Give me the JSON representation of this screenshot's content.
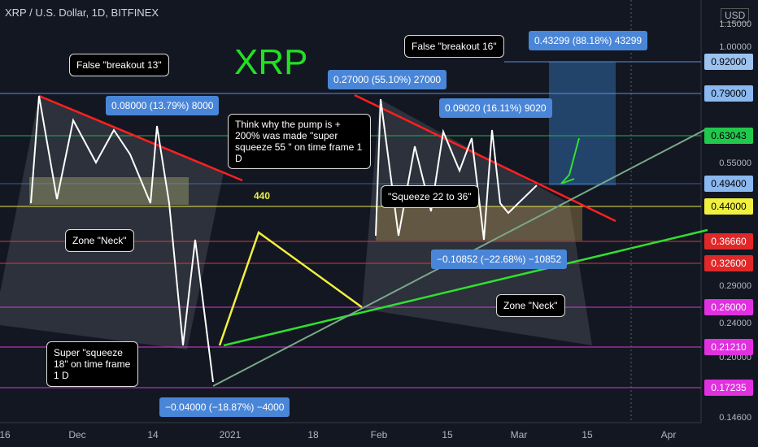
{
  "header": {
    "title": "XRP / U.S. Dollar, 1D, BITFINEX",
    "currency": "USD"
  },
  "watermark": "XRP",
  "price_axis": {
    "ticks": [
      "1.15000",
      "1.00000",
      "0.55000",
      "0.29000",
      "0.24000",
      "0.20000",
      "0.14600"
    ],
    "levels": [
      "0.92000",
      "0.79000",
      "0.63043",
      "0.49400",
      "0.44000",
      "0.36660",
      "0.32600",
      "0.26000",
      "0.21210",
      "0.17235"
    ]
  },
  "time_axis": [
    "16",
    "Dec",
    "14",
    "2021",
    "18",
    "Feb",
    "15",
    "Mar",
    "15",
    "Apr"
  ],
  "level_label": "440",
  "annotations": [
    "False \"breakout 13\"",
    "0.08000 (13.79%) 8000",
    "Zone \"Neck\"",
    "Super \"squeeze 18\" on time frame 1 D",
    "−0.04000 (−18.87%) −4000",
    "0.27000 (55.10%) 27000",
    "False \"breakout 16\"",
    "0.43299 (88.18%) 43299",
    "0.09020 (16.11%) 9020",
    "Think why the pump is + 200% was made \"super squeeze 55 \" on time frame 1 D",
    "\"Squeeze 22 to 36\"",
    "−0.10852 (−22.68%) −10852",
    "Zone \"Neck\""
  ]
}
